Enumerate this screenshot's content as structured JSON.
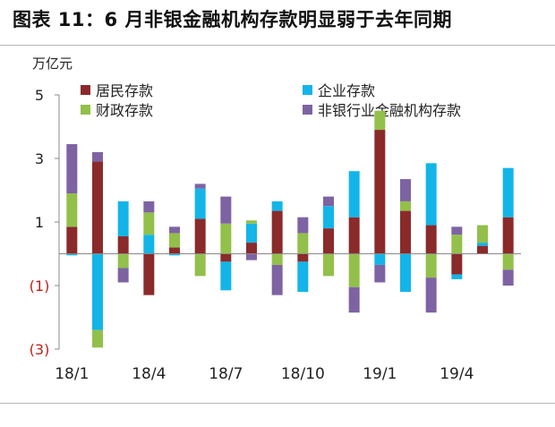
{
  "title": "图表 11：6 月非银金融机构存款明显弱于去年同期",
  "unit_label": "万亿元",
  "colors": {
    "resident": "#8b2a2a",
    "enterprise": "#13b5e8",
    "fiscal": "#92c04a",
    "nonbank": "#7e63a3",
    "axis": "#888888",
    "negative_tick": "#c0201a"
  },
  "chart_data": {
    "type": "bar",
    "stacked": true,
    "categories": [
      "18/1",
      "18/2",
      "18/3",
      "18/4",
      "18/5",
      "18/6",
      "18/7",
      "18/8",
      "18/9",
      "18/10",
      "18/11",
      "18/12",
      "19/1",
      "19/2",
      "19/3",
      "19/4",
      "19/5",
      "19/6"
    ],
    "x_tick_labels": [
      "18/1",
      "18/4",
      "18/7",
      "18/10",
      "19/1",
      "19/4"
    ],
    "x_tick_indices": [
      0,
      3,
      6,
      9,
      12,
      15
    ],
    "y_ticks": [
      5,
      3,
      1,
      -1,
      -3
    ],
    "y_tick_labels": [
      "5",
      "3",
      "1",
      "(1)",
      "(3)"
    ],
    "ylim": [
      -3.0,
      5.0
    ],
    "series": [
      {
        "name": "居民存款",
        "color": "resident",
        "values": [
          0.85,
          2.9,
          0.55,
          -1.3,
          0.2,
          1.1,
          -0.25,
          0.35,
          1.35,
          -0.25,
          0.8,
          1.15,
          3.9,
          1.35,
          0.9,
          -0.65,
          0.25,
          1.15
        ]
      },
      {
        "name": "企业存款",
        "color": "enterprise",
        "values": [
          -0.05,
          -2.4,
          1.1,
          0.6,
          -0.05,
          0.95,
          -0.9,
          0.6,
          0.3,
          -0.95,
          0.7,
          1.45,
          -0.35,
          -1.2,
          1.95,
          -0.15,
          0.1,
          1.55
        ]
      },
      {
        "name": "财政存款",
        "color": "fiscal",
        "values": [
          1.05,
          -0.55,
          -0.45,
          0.7,
          0.45,
          -0.7,
          0.95,
          0.1,
          -0.35,
          0.65,
          -0.7,
          -1.05,
          0.6,
          0.3,
          -0.75,
          0.6,
          0.55,
          -0.5
        ]
      },
      {
        "name": "非银行业金融机构存款",
        "color": "nonbank",
        "values": [
          1.55,
          0.3,
          -0.45,
          0.35,
          0.2,
          0.15,
          0.85,
          -0.2,
          -0.95,
          0.5,
          0.3,
          -0.8,
          -0.55,
          0.7,
          -1.1,
          0.25,
          0.0,
          -0.5
        ]
      }
    ],
    "legend_placement": "top"
  }
}
